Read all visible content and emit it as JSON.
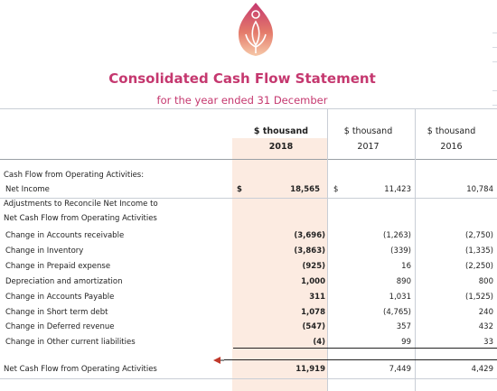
{
  "header": {
    "title": "Consolidated Cash Flow Statement",
    "subtitle": "for the year ended 31 December"
  },
  "columns": [
    {
      "unit": "$ thousand",
      "year": "2018"
    },
    {
      "unit": "$ thousand",
      "year": "2017"
    },
    {
      "unit": "$ thousand",
      "year": "2016"
    }
  ],
  "currency_symbol": "$",
  "colors": {
    "accent": "#c5386f",
    "highlight": "#fcebe1"
  },
  "logo_icon": "lotus-flame-logo",
  "sections": {
    "operating_heading": "Cash Flow from Operating Activities:",
    "adjustments_heading": "Adjustments to Reconcile Net Income to",
    "adjustments_heading_2": "Net Cash Flow from Operating Activities"
  },
  "net_income": {
    "label": "Net Income",
    "v2018": "18,565",
    "v2017": "11,423",
    "v2016": "10,784"
  },
  "rows": [
    {
      "label": "Change in Accounts receivable",
      "v2018": "(3,696)",
      "v2017": "(1,263)",
      "v2016": "(2,750)"
    },
    {
      "label": "Change in Inventory",
      "v2018": "(3,863)",
      "v2017": "(339)",
      "v2016": "(1,335)"
    },
    {
      "label": "Change in Prepaid expense",
      "v2018": "(925)",
      "v2017": "16",
      "v2016": "(2,250)"
    },
    {
      "label": "Depreciation and amortization",
      "v2018": "1,000",
      "v2017": "890",
      "v2016": "800"
    },
    {
      "label": "Change in Accounts Payable",
      "v2018": "311",
      "v2017": "1,031",
      "v2016": "(1,525)"
    },
    {
      "label": "Change in Short term debt",
      "v2018": "1,078",
      "v2017": "(4,765)",
      "v2016": "240"
    },
    {
      "label": "Change in Deferred revenue",
      "v2018": "(547)",
      "v2017": "357",
      "v2016": "432"
    },
    {
      "label": "Change in Other current liabilities",
      "v2018": "(4)",
      "v2017": "99",
      "v2016": "33"
    }
  ],
  "total": {
    "label": "Net Cash Flow from Operating Activities",
    "v2018": "11,919",
    "v2017": "7,449",
    "v2016": "4,429"
  }
}
